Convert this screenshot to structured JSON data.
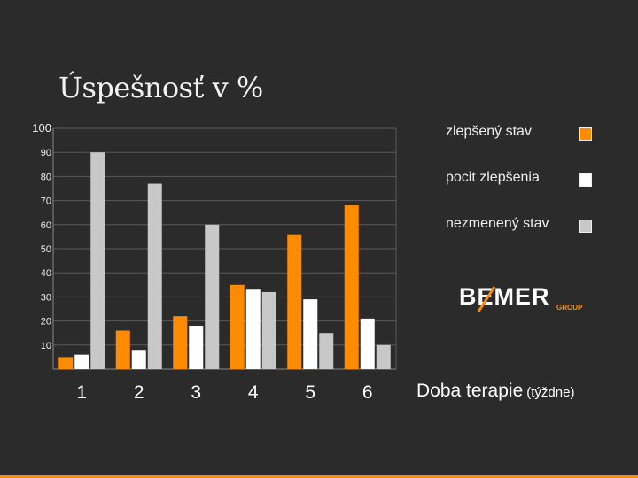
{
  "title": "Úspešnosť v %",
  "brand": {
    "name": "BEMER",
    "sub": "GROUP"
  },
  "colors": {
    "background": "#2b2b2b",
    "accent": "#ff8c00"
  },
  "chart_data": {
    "type": "bar",
    "title": "Úspešnosť v %",
    "xlabel": "Doba terapie",
    "xlabel_unit": "(týždne)",
    "ylabel": "",
    "ylim": [
      0,
      100
    ],
    "yticks": [
      10,
      20,
      30,
      40,
      50,
      60,
      70,
      80,
      90,
      100
    ],
    "grid": true,
    "legend_position": "right",
    "categories": [
      "1",
      "2",
      "3",
      "4",
      "5",
      "6"
    ],
    "series": [
      {
        "name": "zlepšený stav",
        "color": "#ff8c00",
        "values": [
          5,
          16,
          22,
          35,
          56,
          68
        ]
      },
      {
        "name": "pocit zlepšenia",
        "color": "#ffffff",
        "values": [
          6,
          8,
          18,
          33,
          29,
          21
        ]
      },
      {
        "name": "nezmenený stav",
        "color": "#c8c8c8",
        "values": [
          90,
          77,
          60,
          32,
          15,
          10
        ]
      }
    ]
  }
}
